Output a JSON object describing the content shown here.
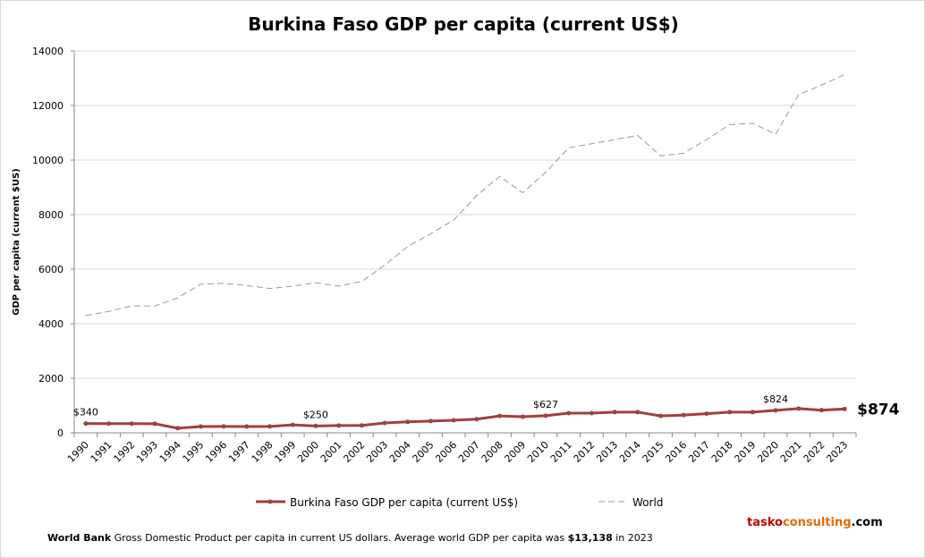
{
  "chart_data": {
    "type": "line",
    "title": "Burkina Faso GDP per capita (current US$)",
    "ylabel": "GDP per capita (current $US)",
    "xlabel": "",
    "ylim": [
      0,
      14000
    ],
    "yticks": [
      "0",
      "2000",
      "4000",
      "6000",
      "8000",
      "10000",
      "12000",
      "14000"
    ],
    "grid": true,
    "legend_placement": "bottom",
    "categories": [
      "1990",
      "1991",
      "1992",
      "1993",
      "1994",
      "1995",
      "1996",
      "1997",
      "1998",
      "1999",
      "2000",
      "2001",
      "2002",
      "2003",
      "2004",
      "2005",
      "2006",
      "2007",
      "2008",
      "2009",
      "2010",
      "2011",
      "2012",
      "2013",
      "2014",
      "2015",
      "2016",
      "2017",
      "2018",
      "2019",
      "2020",
      "2021",
      "2022",
      "2023"
    ],
    "series": [
      {
        "name": "Burkina Faso GDP per capita (current US$)",
        "color": "#a0403f",
        "style": "solid-markers",
        "values": [
          340,
          335,
          335,
          330,
          170,
          230,
          235,
          230,
          235,
          290,
          250,
          265,
          270,
          360,
          400,
          430,
          460,
          500,
          620,
          590,
          627,
          720,
          720,
          760,
          760,
          620,
          650,
          700,
          760,
          760,
          824,
          890,
          830,
          874
        ]
      },
      {
        "name": "World",
        "color": "#999999",
        "style": "dashed",
        "values": [
          4300,
          4450,
          4650,
          4650,
          4950,
          5450,
          5480,
          5400,
          5290,
          5380,
          5500,
          5380,
          5550,
          6150,
          6830,
          7300,
          7800,
          8700,
          9400,
          8800,
          9550,
          10450,
          10600,
          10750,
          10900,
          10150,
          10250,
          10750,
          11300,
          11350,
          10950,
          12400,
          12750,
          13138
        ]
      }
    ],
    "annotations": [
      {
        "year": "1990",
        "text": "$340"
      },
      {
        "year": "2000",
        "text": "$250"
      },
      {
        "year": "2010",
        "text": "$627"
      },
      {
        "year": "2020",
        "text": "$824"
      },
      {
        "year": "2023",
        "text": "$874",
        "emphasis": true
      }
    ]
  },
  "footer": {
    "source": "World Bank",
    "text1": " Gross Domestic Product per capita in current US dollars.  Average world GDP per capita was ",
    "value": "$13,138",
    "text2": " in 2023"
  },
  "brand": {
    "part1": "tasko",
    "part2": "consulting",
    ".com": ".com",
    "part3": ".com",
    "color1": "#c00000",
    "color2": "#e36c09"
  }
}
